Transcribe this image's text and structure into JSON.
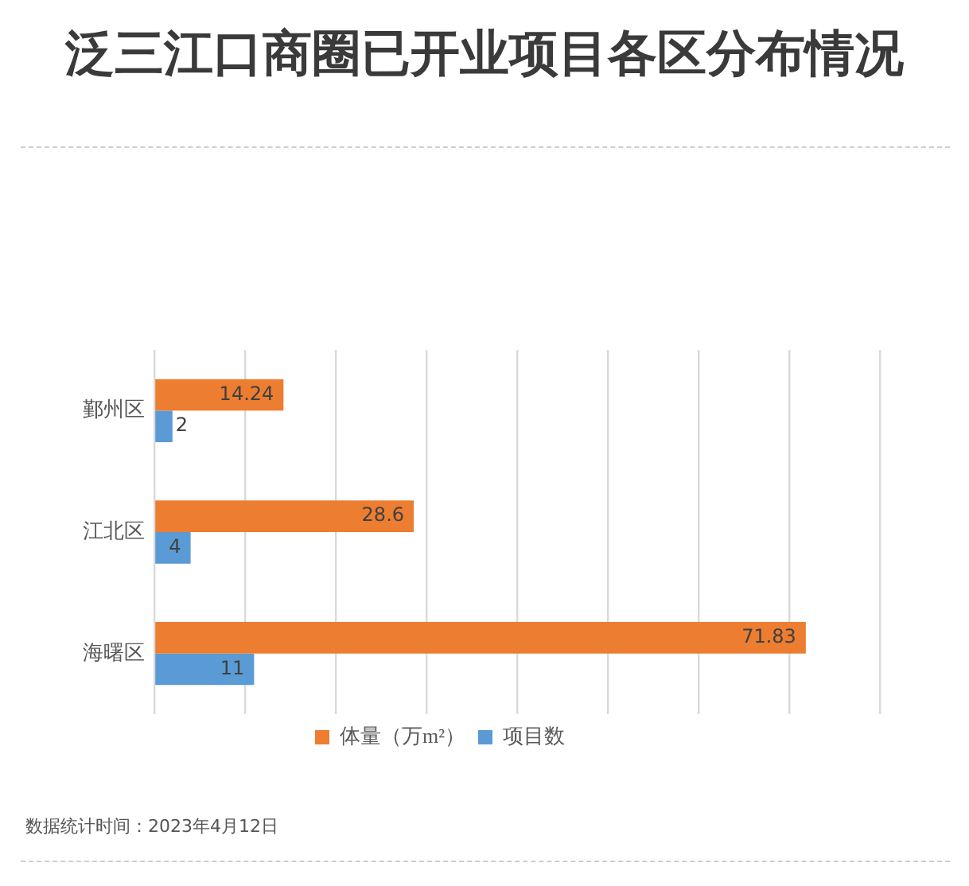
{
  "chart_data": {
    "type": "bar",
    "orientation": "horizontal",
    "title": "泛三江口商圈已开业项目各区分布情况",
    "categories": [
      "鄞州区",
      "江北区",
      "海曙区"
    ],
    "series": [
      {
        "name": "体量（万m²）",
        "color": "#ed7d31",
        "values": [
          14.24,
          28.6,
          71.83
        ]
      },
      {
        "name": "项目数",
        "color": "#5b9bd5",
        "values": [
          2,
          4,
          11
        ]
      }
    ],
    "xlim": [
      0,
      80
    ],
    "xticks": [
      {
        "value": 0,
        "label": null
      },
      {
        "value": 10,
        "label": null
      },
      {
        "value": 20,
        "label": null
      },
      {
        "value": 30,
        "label": null
      },
      {
        "value": 40,
        "label": null
      },
      {
        "value": 50,
        "label": null
      },
      {
        "value": 60,
        "label": null
      },
      {
        "value": 70,
        "label": null
      },
      {
        "value": 80,
        "label": null
      }
    ],
    "tick_labels": "y",
    "grid": "x",
    "legend": "bottom",
    "data_labels": true,
    "annotations": [
      "数据统计时间：2023年4月12日"
    ]
  }
}
